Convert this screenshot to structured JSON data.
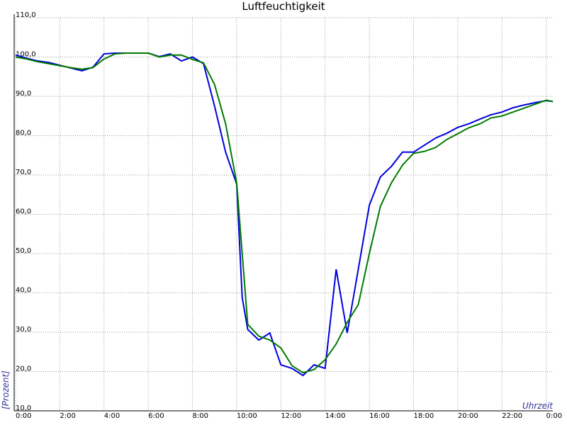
{
  "chart_data": {
    "type": "line",
    "title": "Luftfeuchtigkeit",
    "xlabel": "Uhrzeit",
    "ylabel": "[Prozent]",
    "x": [
      0,
      0.5,
      1,
      1.5,
      2,
      2.5,
      3,
      3.5,
      4,
      4.5,
      5,
      5.5,
      6,
      6.5,
      7,
      7.5,
      8,
      8.5,
      9,
      9.5,
      10,
      10.25,
      10.5,
      11,
      11.5,
      12,
      12.5,
      13,
      13.5,
      14,
      14.5,
      15,
      15.5,
      16,
      16.5,
      17,
      17.5,
      18,
      18.5,
      19,
      19.5,
      20,
      20.5,
      21,
      21.5,
      22,
      22.5,
      23,
      23.5,
      24,
      24.3
    ],
    "series": [
      {
        "color": "#0000dd",
        "values": [
          100.5,
          99.7,
          99,
          98.6,
          97.9,
          97.2,
          96.5,
          97.4,
          100.8,
          101,
          101,
          101,
          101,
          100.1,
          100.8,
          99,
          100,
          98.3,
          87.5,
          75.8,
          67.7,
          38.8,
          30.7,
          28,
          29.8,
          21.7,
          20.8,
          19,
          21.7,
          20.8,
          46,
          29.8,
          46,
          62.3,
          69.5,
          72.2,
          75.8,
          75.8,
          77.6,
          79.4,
          80.6,
          82.1,
          83,
          84.2,
          85.3,
          86,
          87.1,
          87.8,
          88.4,
          88.9,
          88.7
        ]
      },
      {
        "color": "#007a00",
        "values": [
          100,
          99.5,
          98.8,
          98.3,
          97.8,
          97.3,
          96.9,
          97.3,
          99.5,
          100.8,
          101,
          101,
          101,
          100,
          100.5,
          100.5,
          99.4,
          98.5,
          93,
          83,
          68,
          50,
          32,
          29,
          28,
          26,
          21.5,
          19.7,
          20.5,
          23,
          27,
          32.5,
          37,
          50,
          62,
          68,
          72.5,
          75.5,
          76,
          77,
          79,
          80.5,
          82,
          83,
          84.5,
          85,
          86,
          87,
          88,
          89,
          88.7
        ]
      }
    ],
    "xlim": [
      0,
      24.3
    ],
    "xticks": [
      {
        "value": 0,
        "label": "0:00"
      },
      {
        "value": 2,
        "label": "2:00"
      },
      {
        "value": 4,
        "label": "4:00"
      },
      {
        "value": 6,
        "label": "6:00"
      },
      {
        "value": 8,
        "label": "8:00"
      },
      {
        "value": 10,
        "label": "10:00"
      },
      {
        "value": 12,
        "label": "12:00"
      },
      {
        "value": 14,
        "label": "14:00"
      },
      {
        "value": 16,
        "label": "16:00"
      },
      {
        "value": 18,
        "label": "18:00"
      },
      {
        "value": 20,
        "label": "20:00"
      },
      {
        "value": 22,
        "label": "22:00"
      },
      {
        "value": 24,
        "label": "0:00"
      }
    ],
    "ylim": [
      10,
      110
    ],
    "yticks": [
      {
        "value": 10,
        "label": "10,0"
      },
      {
        "value": 20,
        "label": "20,0"
      },
      {
        "value": 30,
        "label": "30,0"
      },
      {
        "value": 40,
        "label": "40,0"
      },
      {
        "value": 50,
        "label": "50,0"
      },
      {
        "value": 60,
        "label": "60,0"
      },
      {
        "value": 70,
        "label": "70,0"
      },
      {
        "value": 80,
        "label": "80,0"
      },
      {
        "value": 90,
        "label": "90,0"
      },
      {
        "value": 100,
        "label": "100,0"
      },
      {
        "value": 110,
        "label": "110,0"
      }
    ],
    "grid": true
  }
}
